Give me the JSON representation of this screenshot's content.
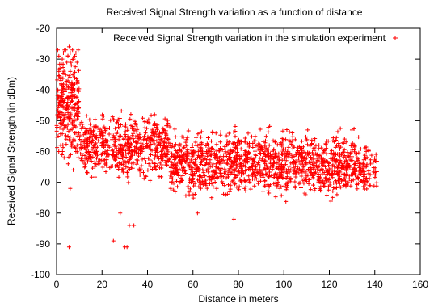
{
  "chart_data": {
    "type": "scatter",
    "title": "Received Signal Strength variation as a function of distance",
    "xlabel": "Distance in meters",
    "ylabel": "Received Signal Strength (in dBm)",
    "xlim": [
      0,
      160
    ],
    "ylim": [
      -100,
      -20
    ],
    "xticks": [
      "0",
      "20",
      "40",
      "60",
      "80",
      "100",
      "120",
      "140",
      "160"
    ],
    "yticks": [
      "-20",
      "-30",
      "-40",
      "-50",
      "-60",
      "-70",
      "-80",
      "-90",
      "-100"
    ],
    "grid": false,
    "legend_position": "top-right",
    "marker": "+",
    "color": "#ff0000",
    "series": [
      {
        "name": "Received Signal Strength variation in the simulation experiment",
        "points": [
          [
            0.5,
            -27
          ],
          [
            1,
            -29
          ],
          [
            1.5,
            -33
          ],
          [
            2,
            -36
          ],
          [
            2.5,
            -30
          ],
          [
            3,
            -28
          ],
          [
            3.5,
            -27
          ],
          [
            4,
            -27
          ],
          [
            4.5,
            -31
          ],
          [
            5,
            -29
          ],
          [
            5.5,
            -26
          ],
          [
            6,
            -28
          ],
          [
            6.5,
            -32
          ],
          [
            7,
            -27
          ],
          [
            7.5,
            -30
          ],
          [
            8,
            -29
          ],
          [
            8.5,
            -28
          ],
          [
            9,
            -31
          ],
          [
            9.5,
            -27
          ],
          [
            0.5,
            -40
          ],
          [
            1,
            -42
          ],
          [
            1.5,
            -45
          ],
          [
            2,
            -38
          ],
          [
            2.5,
            -48
          ],
          [
            3,
            -50
          ],
          [
            3.5,
            -44
          ],
          [
            4,
            -52
          ],
          [
            4.5,
            -46
          ],
          [
            5,
            -55
          ],
          [
            5.5,
            -49
          ],
          [
            6,
            -53
          ],
          [
            6.5,
            -57
          ],
          [
            7,
            -51
          ],
          [
            7.5,
            -56
          ],
          [
            8,
            -54
          ],
          [
            8.5,
            -60
          ],
          [
            9,
            -58
          ],
          [
            9.5,
            -62
          ],
          [
            1,
            -34
          ],
          [
            2,
            -36
          ],
          [
            3,
            -39
          ],
          [
            4,
            -35
          ],
          [
            5,
            -37
          ],
          [
            6,
            -34
          ],
          [
            7,
            -38
          ],
          [
            8,
            -36
          ],
          [
            9,
            -40
          ],
          [
            0.7,
            -55
          ],
          [
            1.8,
            -58
          ],
          [
            2.6,
            -60
          ],
          [
            3.3,
            -62
          ],
          [
            4.2,
            -56
          ],
          [
            5.1,
            -64
          ],
          [
            6.2,
            -61
          ],
          [
            7.3,
            -66
          ],
          [
            8.4,
            -59
          ],
          [
            6,
            -72
          ],
          [
            5.5,
            -91
          ],
          [
            25,
            -89
          ],
          [
            30,
            -91
          ],
          [
            31,
            -91
          ],
          [
            32,
            -84
          ],
          [
            34,
            -84
          ],
          [
            28,
            -80
          ],
          [
            78,
            -82
          ],
          [
            62,
            -80
          ]
        ],
        "bands": [
          {
            "x": [
              0,
              10
            ],
            "y_top": -25,
            "y_bottom": -65
          },
          {
            "x": [
              10,
              50
            ],
            "y_top": -45,
            "y_bottom": -72
          },
          {
            "x": [
              50,
              133
            ],
            "y_top": -50,
            "y_bottom": -78
          },
          {
            "x": [
              133,
              141
            ],
            "y_top": -56,
            "y_bottom": -75
          }
        ]
      }
    ]
  }
}
